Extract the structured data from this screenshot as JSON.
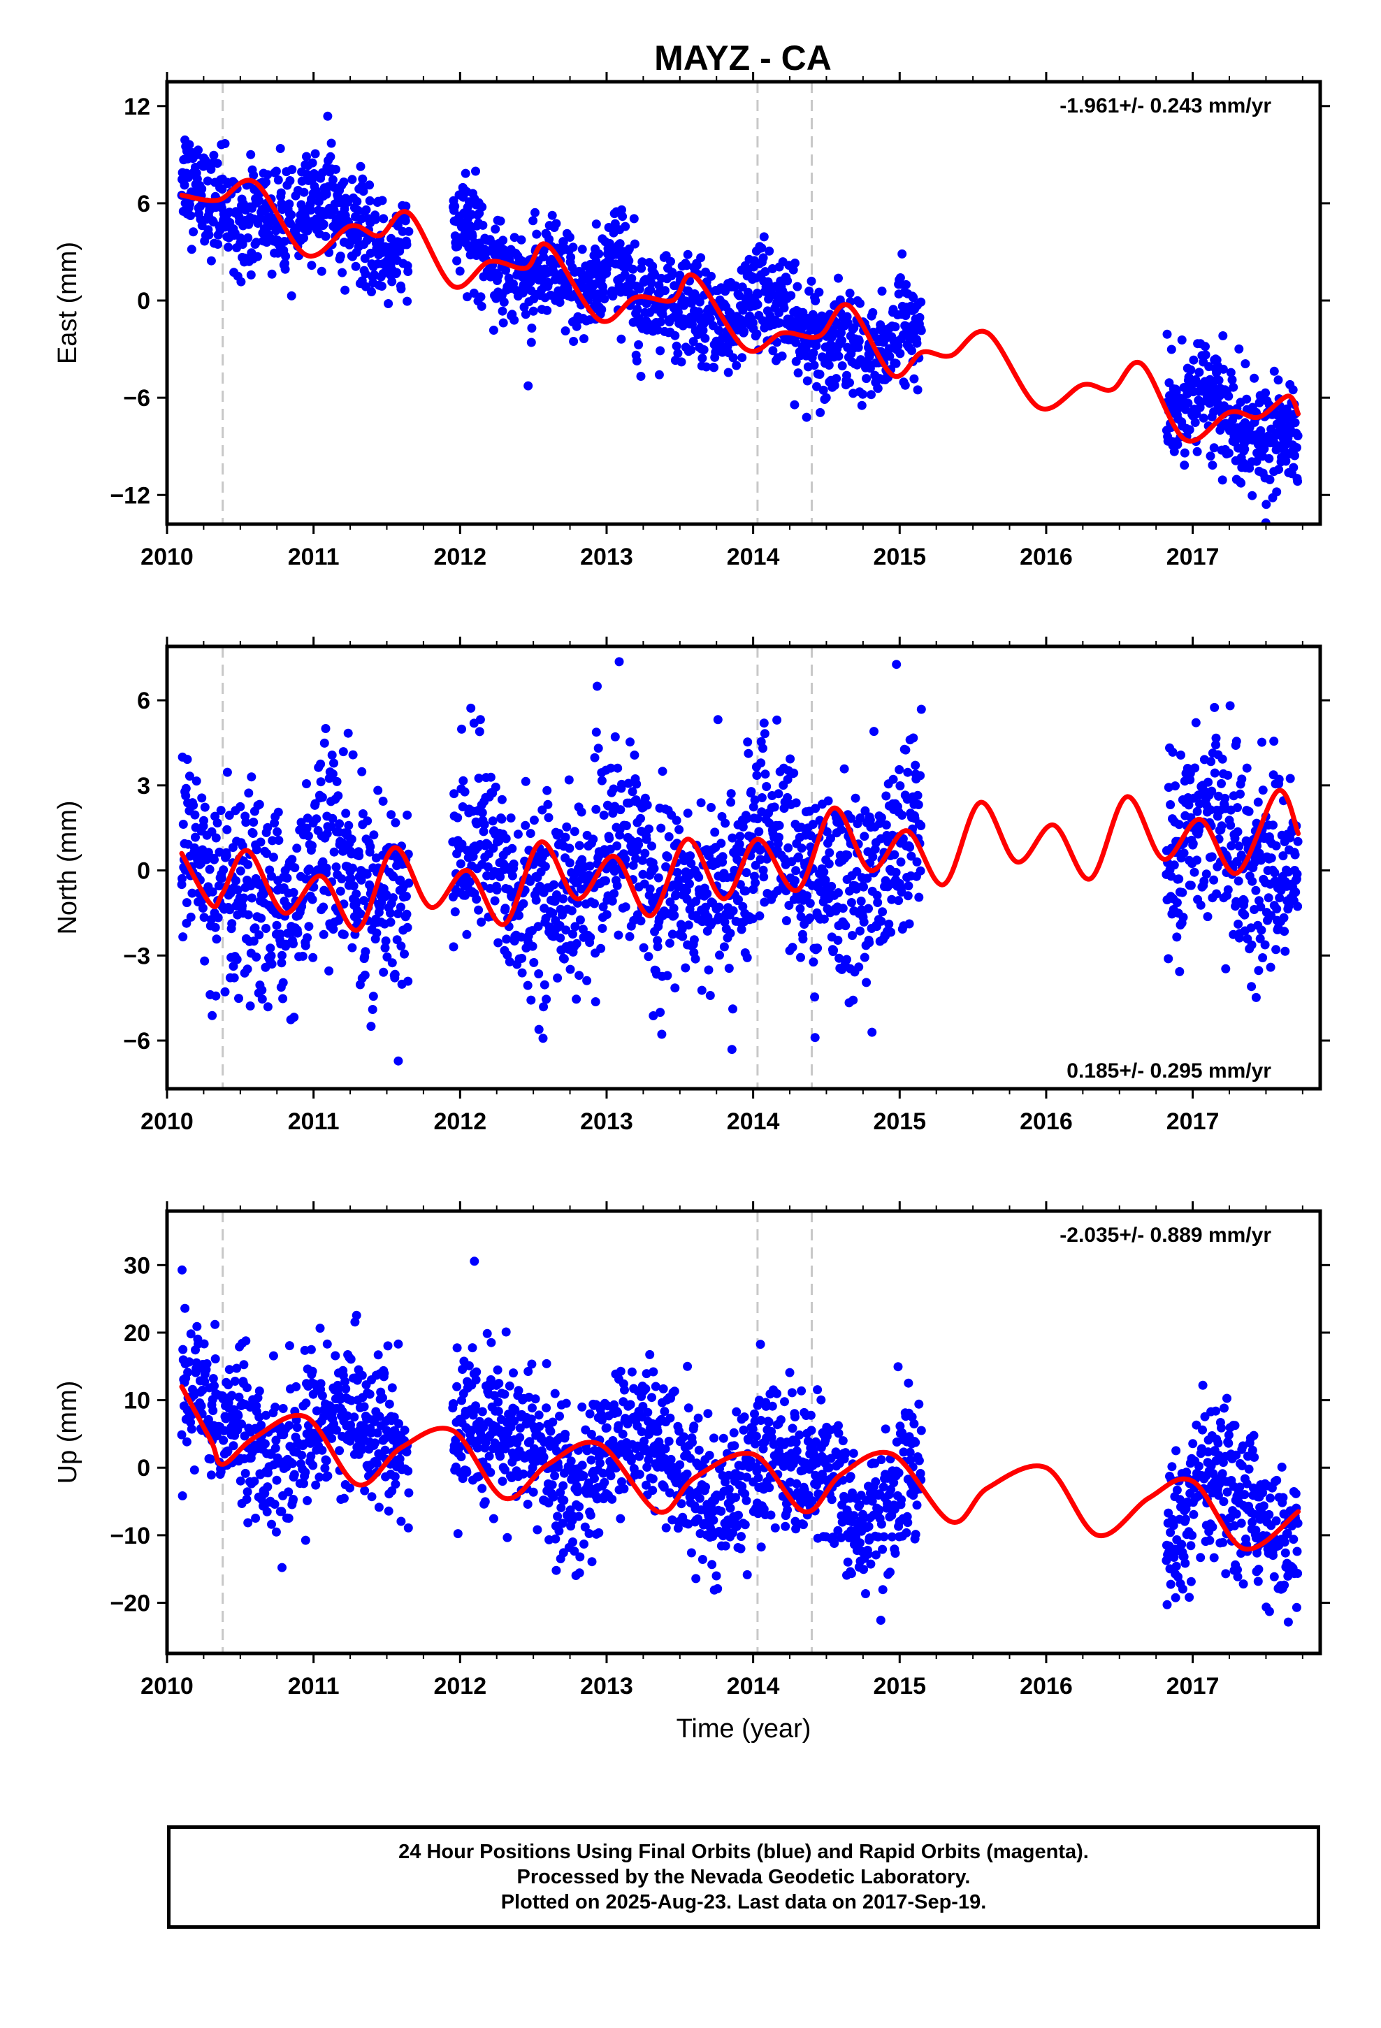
{
  "title": "MAYZ - CA",
  "footer": {
    "lines": [
      "24 Hour Positions Using Final Orbits (blue) and Rapid Orbits (magenta).",
      "Processed by the Nevada Geodetic Laboratory.",
      "Plotted on 2025-Aug-23. Last data on 2017-Sep-19."
    ]
  },
  "colors": {
    "final_points": "#0000ff",
    "model_fit": "#ff0000",
    "event_lines": "#c8c8c8"
  },
  "chart_data": [
    {
      "type": "scatter",
      "ylabel": "East (mm)",
      "xlabel": "",
      "xlim": [
        2010.0,
        2017.87
      ],
      "ylim": [
        -13.8,
        13.5
      ],
      "xticks": [
        2010,
        2011,
        2012,
        2013,
        2014,
        2015,
        2016,
        2017
      ],
      "yticks": [
        -12,
        -6,
        0,
        6,
        12
      ],
      "rate": "-1.961+/- 0.243 mm/yr",
      "rate_position": "top-right",
      "event_lines": [
        2010.38,
        2014.03,
        2014.4
      ],
      "data_segments": [
        [
          2010.1,
          2011.65
        ],
        [
          2011.95,
          2015.15
        ],
        [
          2016.82,
          2017.72
        ]
      ],
      "trend": {
        "ref": 2014.0,
        "offset": -1.0,
        "rate": -1.961,
        "noise": 1.6
      },
      "seasonal": [
        [
          0.9,
          1.0,
          1.05
        ],
        [
          0.6,
          2.0,
          0.4
        ],
        [
          0.3,
          3.0,
          1.2
        ]
      ],
      "fit_keypoints": [
        [
          2010.1,
          6.5
        ],
        [
          2010.35,
          6.2
        ],
        [
          2010.6,
          7.3
        ],
        [
          2010.95,
          2.8
        ],
        [
          2011.25,
          4.6
        ],
        [
          2011.45,
          4.0
        ],
        [
          2011.65,
          5.4
        ],
        [
          2011.95,
          0.9
        ],
        [
          2012.2,
          2.4
        ],
        [
          2012.45,
          2.0
        ],
        [
          2012.6,
          3.4
        ],
        [
          2012.95,
          -1.2
        ],
        [
          2013.2,
          0.2
        ],
        [
          2013.45,
          0.0
        ],
        [
          2013.6,
          1.5
        ],
        [
          2013.95,
          -3.0
        ],
        [
          2014.2,
          -2.0
        ],
        [
          2014.45,
          -2.2
        ],
        [
          2014.65,
          -0.3
        ],
        [
          2014.95,
          -4.6
        ],
        [
          2015.15,
          -3.2
        ],
        [
          2015.35,
          -3.4
        ],
        [
          2015.6,
          -2.0
        ],
        [
          2015.95,
          -6.6
        ],
        [
          2016.25,
          -5.2
        ],
        [
          2016.45,
          -5.5
        ],
        [
          2016.65,
          -3.9
        ],
        [
          2016.95,
          -8.6
        ],
        [
          2017.25,
          -6.9
        ],
        [
          2017.45,
          -7.2
        ],
        [
          2017.65,
          -5.9
        ],
        [
          2017.72,
          -7.0
        ]
      ]
    },
    {
      "type": "scatter",
      "ylabel": "North (mm)",
      "xlabel": "",
      "xlim": [
        2010.0,
        2017.87
      ],
      "ylim": [
        -7.7,
        7.9
      ],
      "xticks": [
        2010,
        2011,
        2012,
        2013,
        2014,
        2015,
        2016,
        2017
      ],
      "yticks": [
        -6,
        -3,
        0,
        3,
        6
      ],
      "rate": "0.185+/- 0.295 mm/yr",
      "rate_position": "bottom-right",
      "event_lines": [
        2010.38,
        2014.03,
        2014.4
      ],
      "data_segments": [
        [
          2010.1,
          2011.65
        ],
        [
          2011.95,
          2015.15
        ],
        [
          2016.82,
          2017.72
        ]
      ],
      "trend": {
        "ref": 2014.0,
        "offset": 0.0,
        "rate": 0.185,
        "noise": 1.7
      },
      "seasonal": [
        [
          1.0,
          1.0,
          0.9
        ],
        [
          0.5,
          2.0,
          0.2
        ]
      ],
      "fit_keypoints": [
        [
          2010.1,
          0.6
        ],
        [
          2010.3,
          -1.2
        ],
        [
          2010.38,
          -0.8
        ],
        [
          2010.55,
          0.7
        ],
        [
          2010.8,
          -1.5
        ],
        [
          2011.05,
          -0.2
        ],
        [
          2011.3,
          -2.1
        ],
        [
          2011.55,
          0.8
        ],
        [
          2011.8,
          -1.3
        ],
        [
          2012.05,
          0.0
        ],
        [
          2012.3,
          -1.9
        ],
        [
          2012.55,
          1.0
        ],
        [
          2012.8,
          -1.0
        ],
        [
          2013.05,
          0.5
        ],
        [
          2013.3,
          -1.6
        ],
        [
          2013.55,
          1.1
        ],
        [
          2013.8,
          -1.0
        ],
        [
          2014.03,
          1.1
        ],
        [
          2014.3,
          -0.7
        ],
        [
          2014.55,
          2.2
        ],
        [
          2014.8,
          0.0
        ],
        [
          2015.05,
          1.4
        ],
        [
          2015.3,
          -0.5
        ],
        [
          2015.55,
          2.4
        ],
        [
          2015.8,
          0.3
        ],
        [
          2016.05,
          1.6
        ],
        [
          2016.3,
          -0.3
        ],
        [
          2016.55,
          2.6
        ],
        [
          2016.8,
          0.4
        ],
        [
          2017.05,
          1.8
        ],
        [
          2017.3,
          -0.1
        ],
        [
          2017.58,
          2.8
        ],
        [
          2017.72,
          1.3
        ]
      ]
    },
    {
      "type": "scatter",
      "ylabel": "Up (mm)",
      "xlabel": "Time (year)",
      "xlim": [
        2010.0,
        2017.87
      ],
      "ylim": [
        -27.5,
        38.0
      ],
      "xticks": [
        2010,
        2011,
        2012,
        2013,
        2014,
        2015,
        2016,
        2017
      ],
      "yticks": [
        -20,
        -10,
        0,
        10,
        20,
        30
      ],
      "rate": "-2.035+/- 0.889 mm/yr",
      "rate_position": "top-right",
      "event_lines": [
        2010.38,
        2014.03,
        2014.4
      ],
      "data_segments": [
        [
          2010.1,
          2011.65
        ],
        [
          2011.95,
          2015.15
        ],
        [
          2016.82,
          2017.72
        ]
      ],
      "trend": {
        "ref": 2014.0,
        "offset": -1.0,
        "rate": -2.035,
        "noise": 5.5
      },
      "seasonal": [
        [
          4.5,
          1.0,
          0.1
        ],
        [
          1.5,
          2.0,
          1.0
        ]
      ],
      "fit_keypoints": [
        [
          2010.1,
          12.0
        ],
        [
          2010.3,
          4.0
        ],
        [
          2010.38,
          0.5
        ],
        [
          2010.6,
          4.5
        ],
        [
          2010.95,
          7.5
        ],
        [
          2011.3,
          -2.5
        ],
        [
          2011.6,
          3.0
        ],
        [
          2011.95,
          5.5
        ],
        [
          2012.3,
          -4.5
        ],
        [
          2012.6,
          0.5
        ],
        [
          2012.95,
          3.5
        ],
        [
          2013.35,
          -6.5
        ],
        [
          2013.6,
          -1.5
        ],
        [
          2014.0,
          2.0
        ],
        [
          2014.35,
          -6.5
        ],
        [
          2014.6,
          -1.0
        ],
        [
          2014.95,
          2.0
        ],
        [
          2015.35,
          -8.0
        ],
        [
          2015.6,
          -3.0
        ],
        [
          2016.0,
          0.0
        ],
        [
          2016.35,
          -10.0
        ],
        [
          2016.7,
          -4.5
        ],
        [
          2017.0,
          -2.0
        ],
        [
          2017.35,
          -12.0
        ],
        [
          2017.72,
          -6.5
        ]
      ]
    }
  ]
}
